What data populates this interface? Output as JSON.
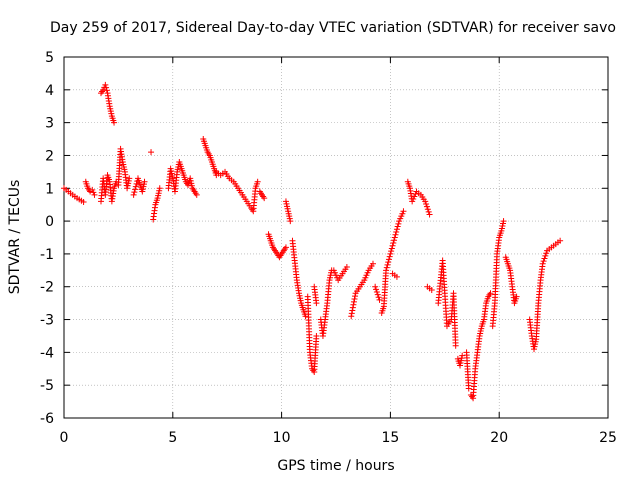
{
  "chart_data": {
    "type": "scatter",
    "title": "Day 259 of 2017, Sidereal Day-to-day VTEC variation (SDTVAR) for receiver savo",
    "xlabel": "GPS time / hours",
    "ylabel": "SDTVAR / TECUs",
    "xlim": [
      0,
      25
    ],
    "ylim": [
      -6,
      5
    ],
    "xticks": [
      0,
      5,
      10,
      15,
      20,
      25
    ],
    "yticks": [
      -6,
      -5,
      -4,
      -3,
      -2,
      -1,
      0,
      1,
      2,
      3,
      4,
      5
    ],
    "xtick_labels": [
      "0",
      "5",
      "10",
      "15",
      "20",
      "25"
    ],
    "ytick_labels": [
      "-6",
      "-5",
      "-4",
      "-3",
      "-2",
      "-1",
      "0",
      "1",
      "2",
      "3",
      "4",
      "5"
    ],
    "grid": true,
    "marker": "+",
    "color": "#ff0000",
    "series": [
      {
        "name": "SDTVAR",
        "segments": [
          {
            "x": [
              0.0,
              0.2,
              0.4,
              0.6,
              0.8,
              0.9
            ],
            "y": [
              1.0,
              0.9,
              0.8,
              0.7,
              0.62,
              0.58
            ]
          },
          {
            "x": [
              1.0,
              1.1,
              1.2,
              1.3,
              1.4
            ],
            "y": [
              1.2,
              1.0,
              0.9,
              0.95,
              0.8
            ]
          },
          {
            "x": [
              1.7,
              1.8,
              1.9,
              2.0,
              2.1,
              2.2,
              2.3
            ],
            "y": [
              3.9,
              4.0,
              4.15,
              3.9,
              3.5,
              3.2,
              3.0
            ]
          },
          {
            "x": [
              1.7,
              1.8,
              1.9,
              2.0,
              2.1,
              2.2,
              2.3,
              2.4
            ],
            "y": [
              0.6,
              1.3,
              0.8,
              1.4,
              1.2,
              0.6,
              1.0,
              1.2
            ]
          },
          {
            "x": [
              2.5,
              2.6,
              2.7,
              2.8,
              2.9,
              3.0
            ],
            "y": [
              1.1,
              2.2,
              1.8,
              1.5,
              1.0,
              1.3
            ]
          },
          {
            "x": [
              3.2,
              3.4,
              3.5,
              3.6,
              3.7
            ],
            "y": [
              0.8,
              1.3,
              1.1,
              0.9,
              1.2
            ]
          },
          {
            "x": [
              4.0
            ],
            "y": [
              2.1
            ]
          },
          {
            "x": [
              4.1,
              4.2,
              4.3,
              4.4
            ],
            "y": [
              0.05,
              0.5,
              0.7,
              1.0
            ]
          },
          {
            "x": [
              4.8,
              4.9,
              5.0,
              5.1,
              5.2,
              5.3,
              5.4,
              5.5,
              5.6,
              5.7,
              5.8,
              5.9,
              6.0,
              6.1
            ],
            "y": [
              1.0,
              1.6,
              1.3,
              0.9,
              1.5,
              1.8,
              1.6,
              1.4,
              1.2,
              1.1,
              1.3,
              1.0,
              0.9,
              0.8
            ]
          },
          {
            "x": [
              6.4,
              6.5,
              6.6,
              6.7,
              6.8,
              6.9,
              7.0
            ],
            "y": [
              2.5,
              2.3,
              2.1,
              2.0,
              1.8,
              1.6,
              1.4
            ]
          },
          {
            "x": [
              7.0,
              7.2,
              7.4,
              7.6,
              7.8,
              8.0,
              8.2,
              8.4,
              8.6,
              8.7,
              8.8,
              8.9
            ],
            "y": [
              1.5,
              1.4,
              1.5,
              1.3,
              1.2,
              1.0,
              0.8,
              0.6,
              0.4,
              0.3,
              1.0,
              1.2
            ]
          },
          {
            "x": [
              9.0,
              9.1,
              9.2
            ],
            "y": [
              0.9,
              0.8,
              0.7
            ]
          },
          {
            "x": [
              9.4,
              9.5,
              9.6,
              9.7,
              9.8,
              9.9,
              10.0,
              10.1,
              10.2
            ],
            "y": [
              -0.4,
              -0.6,
              -0.8,
              -0.9,
              -1.0,
              -1.1,
              -1.0,
              -0.9,
              -0.8
            ]
          },
          {
            "x": [
              10.2,
              10.3,
              10.4
            ],
            "y": [
              0.6,
              0.3,
              0.0
            ]
          },
          {
            "x": [
              10.5,
              10.6,
              10.7,
              10.8,
              10.9,
              11.0,
              11.1
            ],
            "y": [
              -0.6,
              -1.2,
              -1.8,
              -2.2,
              -2.5,
              -2.7,
              -2.9
            ]
          },
          {
            "x": [
              11.2,
              11.3,
              11.4,
              11.5,
              11.6
            ],
            "y": [
              -2.3,
              -4.0,
              -4.5,
              -4.6,
              -3.5
            ]
          },
          {
            "x": [
              11.5,
              11.6
            ],
            "y": [
              -2.0,
              -2.5
            ]
          },
          {
            "x": [
              11.8,
              11.9,
              12.0,
              12.1,
              12.2,
              12.3
            ],
            "y": [
              -3.0,
              -3.5,
              -3.0,
              -2.5,
              -1.8,
              -1.5
            ]
          },
          {
            "x": [
              12.4,
              12.6,
              12.8,
              13.0
            ],
            "y": [
              -1.5,
              -1.8,
              -1.6,
              -1.4
            ]
          },
          {
            "x": [
              13.2,
              13.4,
              13.6,
              13.8,
              14.0,
              14.2
            ],
            "y": [
              -2.9,
              -2.2,
              -2.0,
              -1.8,
              -1.5,
              -1.3
            ]
          },
          {
            "x": [
              14.3,
              14.5
            ],
            "y": [
              -2.0,
              -2.4
            ]
          },
          {
            "x": [
              14.6,
              14.7,
              14.8,
              15.0,
              15.2,
              15.4,
              15.6
            ],
            "y": [
              -2.8,
              -2.6,
              -1.5,
              -1.0,
              -0.5,
              0.0,
              0.3
            ]
          },
          {
            "x": [
              15.1,
              15.3
            ],
            "y": [
              -1.6,
              -1.7
            ]
          },
          {
            "x": [
              15.8,
              15.9,
              16.0,
              16.2,
              16.4,
              16.6,
              16.8
            ],
            "y": [
              1.2,
              1.0,
              0.6,
              0.9,
              0.8,
              0.6,
              0.2
            ]
          },
          {
            "x": [
              16.7,
              16.9
            ],
            "y": [
              -2.0,
              -2.1
            ]
          },
          {
            "x": [
              17.2,
              17.4,
              17.6,
              17.8,
              17.9,
              18.0
            ],
            "y": [
              -2.5,
              -1.2,
              -3.2,
              -3.0,
              -2.2,
              -3.8
            ]
          },
          {
            "x": [
              18.1,
              18.2,
              18.3
            ],
            "y": [
              -4.2,
              -4.4,
              -4.1
            ]
          },
          {
            "x": [
              18.5,
              18.6
            ],
            "y": [
              -4.0,
              -5.1
            ]
          },
          {
            "x": [
              18.7,
              18.8,
              18.9,
              19.0,
              19.1,
              19.2,
              19.3,
              19.4,
              19.5,
              19.6
            ],
            "y": [
              -5.3,
              -5.4,
              -4.5,
              -4.0,
              -3.5,
              -3.2,
              -3.0,
              -2.5,
              -2.3,
              -2.2
            ]
          },
          {
            "x": [
              19.7,
              19.8,
              19.9,
              20.0,
              20.1,
              20.2
            ],
            "y": [
              -3.2,
              -2.5,
              -1.0,
              -0.5,
              -0.3,
              0.0
            ]
          },
          {
            "x": [
              20.3,
              20.4,
              20.5,
              20.6,
              20.7,
              20.8
            ],
            "y": [
              -1.1,
              -1.3,
              -1.5,
              -2.0,
              -2.5,
              -2.3
            ]
          },
          {
            "x": [
              21.4,
              21.5,
              21.6,
              21.7,
              21.8,
              21.9,
              22.0,
              22.2,
              22.4,
              22.6,
              22.8
            ],
            "y": [
              -3.0,
              -3.5,
              -3.9,
              -3.6,
              -2.5,
              -1.8,
              -1.3,
              -0.9,
              -0.8,
              -0.7,
              -0.6
            ]
          }
        ]
      }
    ]
  }
}
